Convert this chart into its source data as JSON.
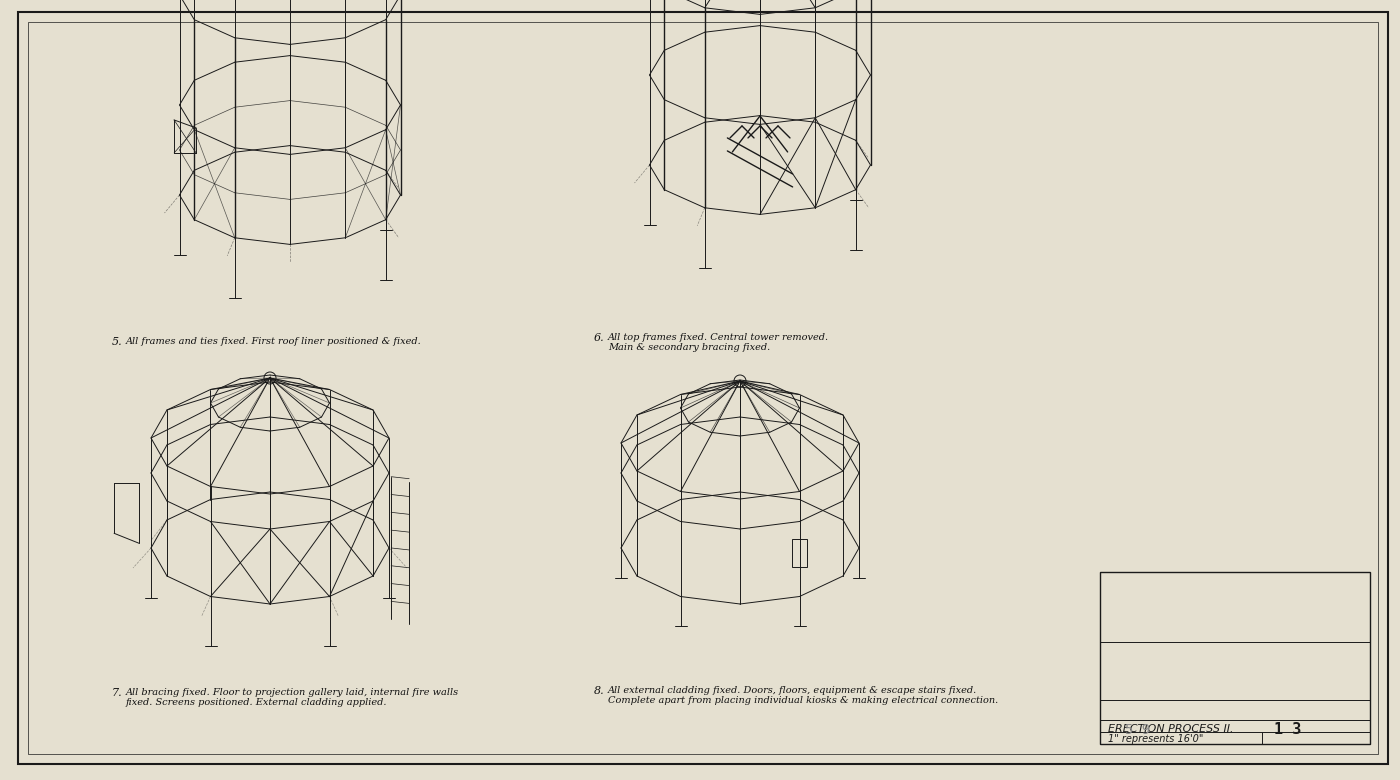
{
  "background_color": "#e5e0d0",
  "line_color": "#1a1a1a",
  "title": "ERECTION PROCESS II.",
  "scale_text": "1\" represents 16'0\"",
  "caption5": "All frames and ties fixed. First roof liner positioned & fixed.",
  "caption6": "All top frames fixed. Central tower removed.\nMain & secondary bracing fixed.",
  "caption7": "All bracing fixed. Floor to projection gallery laid, internal fire walls\nfixed. Screens positioned. External cladding applied.",
  "caption8": "All external cladding fixed. Doors, floors, equipment & escape stairs fixed.\nComplete apart from placing individual kiosks & making electrical connection.",
  "caption_fontsize": 7.0,
  "title_fontsize": 8.0
}
